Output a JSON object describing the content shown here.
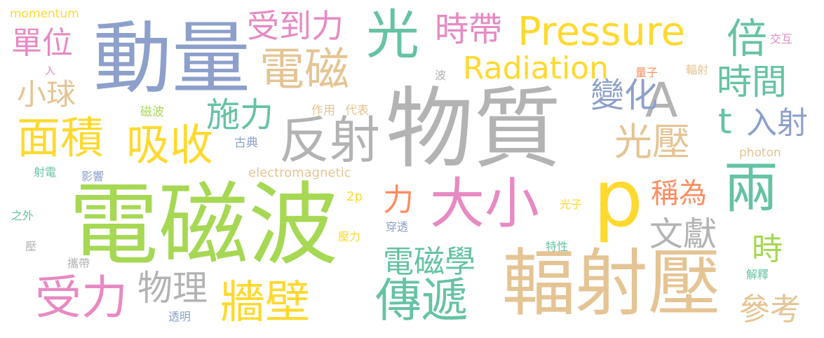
{
  "palette": {
    "green": "#a6d854",
    "gray": "#b3b3b3",
    "blue": "#8da0cb",
    "tan": "#e5c494",
    "yellow": "#ffd92f",
    "pink": "#e78ac3",
    "teal": "#66c2a5",
    "orange": "#fc8d62"
  },
  "words": [
    {
      "text": "電磁波",
      "color": "#a6d854"
    },
    {
      "text": "物質",
      "color": "#b3b3b3"
    },
    {
      "text": "動量",
      "color": "#8da0cb"
    },
    {
      "text": "輻射壓",
      "color": "#e5c494"
    },
    {
      "text": "p",
      "color": "#ffd92f"
    },
    {
      "text": "Pressure",
      "color": "#ffd92f"
    },
    {
      "text": "大小",
      "color": "#e78ac3"
    },
    {
      "text": "兩",
      "color": "#66c2a5"
    },
    {
      "text": "反射",
      "color": "#b3b3b3"
    },
    {
      "text": "電磁",
      "color": "#e5c494"
    },
    {
      "text": "光",
      "color": "#66c2a5"
    },
    {
      "text": "A",
      "color": "#b3b3b3"
    },
    {
      "text": "吸收",
      "color": "#ffd92f"
    },
    {
      "text": "面積",
      "color": "#ffd92f"
    },
    {
      "text": "傳遞",
      "color": "#66c2a5"
    },
    {
      "text": "受力",
      "color": "#e78ac3"
    },
    {
      "text": "牆壁",
      "color": "#ffd92f"
    },
    {
      "text": "Radiation",
      "color": "#ffd92f"
    },
    {
      "text": "受到力",
      "color": "#e78ac3"
    },
    {
      "text": "光壓",
      "color": "#e5c494"
    },
    {
      "text": "倍",
      "color": "#66c2a5"
    },
    {
      "text": "時間",
      "color": "#66c2a5"
    },
    {
      "text": "時帶",
      "color": "#e78ac3"
    },
    {
      "text": "單位",
      "color": "#e78ac3"
    },
    {
      "text": "小球",
      "color": "#e5c494"
    },
    {
      "text": "施力",
      "color": "#66c2a5"
    },
    {
      "text": "變化",
      "color": "#8da0cb"
    },
    {
      "text": "t",
      "color": "#66c2a5"
    },
    {
      "text": "入射",
      "color": "#8da0cb"
    },
    {
      "text": "物理",
      "color": "#b3b3b3"
    },
    {
      "text": "電磁學",
      "color": "#66c2a5"
    },
    {
      "text": "文獻",
      "color": "#b3b3b3"
    },
    {
      "text": "稱為",
      "color": "#fc8d62"
    },
    {
      "text": "力",
      "color": "#fc8d62"
    },
    {
      "text": "時",
      "color": "#a6d854"
    },
    {
      "text": "參考",
      "color": "#e5c494"
    },
    {
      "text": "momentum",
      "color": "#ffd92f"
    },
    {
      "text": "入",
      "color": "#e78ac3"
    },
    {
      "text": "磁波",
      "color": "#a6d854"
    },
    {
      "text": "作用",
      "color": "#e5c494"
    },
    {
      "text": "代表",
      "color": "#e5c494"
    },
    {
      "text": "古典",
      "color": "#8da0cb"
    },
    {
      "text": "electromagnetic",
      "color": "#e5c494"
    },
    {
      "text": "射電",
      "color": "#66c2a5"
    },
    {
      "text": "影響",
      "color": "#8da0cb"
    },
    {
      "text": "之外",
      "color": "#66c2a5"
    },
    {
      "text": "壓",
      "color": "#b3b3b3"
    },
    {
      "text": "攜帶",
      "color": "#b3b3b3"
    },
    {
      "text": "透明",
      "color": "#8da0cb"
    },
    {
      "text": "2p",
      "color": "#ffd92f"
    },
    {
      "text": "壓力",
      "color": "#ffd92f"
    },
    {
      "text": "穿透",
      "color": "#8da0cb"
    },
    {
      "text": "光子",
      "color": "#ffd92f"
    },
    {
      "text": "特性",
      "color": "#66c2a5"
    },
    {
      "text": "波",
      "color": "#b3b3b3"
    },
    {
      "text": "量子",
      "color": "#fc8d62"
    },
    {
      "text": "輻射",
      "color": "#e5c494"
    },
    {
      "text": "交互",
      "color": "#e78ac3"
    },
    {
      "text": "photon",
      "color": "#e5c494"
    },
    {
      "text": "解釋",
      "color": "#66c2a5"
    }
  ]
}
